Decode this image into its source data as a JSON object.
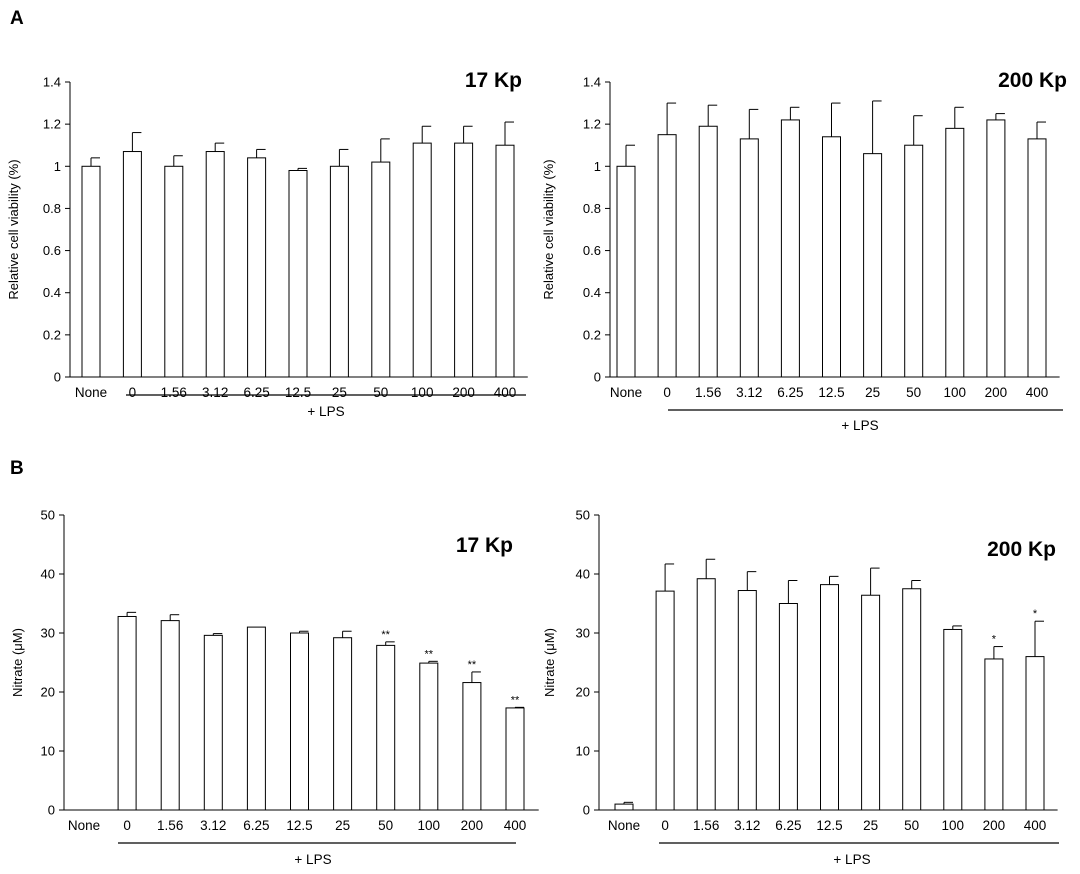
{
  "panels": {
    "a": "A",
    "b": "B"
  },
  "chart_data": [
    {
      "type": "bar",
      "panel": "A",
      "title": "17 Kp",
      "ylabel": "Relative cell viability (%)",
      "xlabel": "",
      "ylim": [
        0,
        1.4
      ],
      "yticks": [
        "0",
        "0.2",
        "0.4",
        "0.6",
        "0.8",
        "1",
        "1.2",
        "1.4"
      ],
      "yticks_values": [
        0,
        0.2,
        0.4,
        0.6,
        0.8,
        1.0,
        1.2,
        1.4
      ],
      "categories": [
        "None",
        "0",
        "1.56",
        "3.12",
        "6.25",
        "12.5",
        "25",
        "50",
        "100",
        "200",
        "400"
      ],
      "values": [
        1.0,
        1.07,
        1.0,
        1.07,
        1.04,
        0.98,
        1.0,
        1.02,
        1.11,
        1.11,
        1.1
      ],
      "errors": [
        0.04,
        0.09,
        0.05,
        0.04,
        0.04,
        0.01,
        0.08,
        0.11,
        0.08,
        0.08,
        0.11
      ],
      "significance": [
        "",
        "",
        "",
        "",
        "",
        "",
        "",
        "",
        "",
        "",
        ""
      ],
      "group_label": "+ LPS",
      "grid": false,
      "bar_fill": "#ffffff",
      "bar_stroke": "#000000"
    },
    {
      "type": "bar",
      "panel": "A",
      "title": "200 Kp",
      "ylabel": "Relative cell viability (%)",
      "xlabel": "",
      "ylim": [
        0,
        1.4
      ],
      "yticks": [
        "0",
        "0.2",
        "0.4",
        "0.6",
        "0.8",
        "1",
        "1.2",
        "1.4"
      ],
      "yticks_values": [
        0,
        0.2,
        0.4,
        0.6,
        0.8,
        1.0,
        1.2,
        1.4
      ],
      "categories": [
        "None",
        "0",
        "1.56",
        "3.12",
        "6.25",
        "12.5",
        "25",
        "50",
        "100",
        "200",
        "400"
      ],
      "values": [
        1.0,
        1.15,
        1.19,
        1.13,
        1.22,
        1.14,
        1.06,
        1.1,
        1.18,
        1.22,
        1.13
      ],
      "errors": [
        0.1,
        0.15,
        0.1,
        0.14,
        0.06,
        0.16,
        0.25,
        0.14,
        0.1,
        0.03,
        0.08
      ],
      "significance": [
        "",
        "",
        "",
        "",
        "",
        "",
        "",
        "",
        "",
        "",
        ""
      ],
      "group_label": "+ LPS",
      "grid": false,
      "bar_fill": "#ffffff",
      "bar_stroke": "#000000"
    },
    {
      "type": "bar",
      "panel": "B",
      "title": "17 Kp",
      "ylabel": "Nitrate (μM)",
      "xlabel": "",
      "ylim": [
        0,
        50
      ],
      "yticks": [
        "0",
        "10",
        "20",
        "30",
        "40",
        "50"
      ],
      "yticks_values": [
        0,
        10,
        20,
        30,
        40,
        50
      ],
      "categories": [
        "None",
        "0",
        "1.56",
        "3.12",
        "6.25",
        "12.5",
        "25",
        "50",
        "100",
        "200",
        "400"
      ],
      "values": [
        0,
        32.8,
        32.1,
        29.6,
        31.0,
        30.0,
        29.2,
        27.9,
        24.9,
        21.6,
        17.3
      ],
      "errors": [
        0,
        0.7,
        1.0,
        0.3,
        0,
        0.3,
        1.1,
        0.6,
        0.3,
        1.8,
        0.1
      ],
      "significance": [
        "",
        "",
        "",
        "",
        "",
        "",
        "",
        "**",
        "**",
        "**",
        "**"
      ],
      "group_label": "+ LPS",
      "grid": false,
      "bar_fill": "#ffffff",
      "bar_stroke": "#000000"
    },
    {
      "type": "bar",
      "panel": "B",
      "title": "200 Kp",
      "ylabel": "Nitrate (μM)",
      "xlabel": "",
      "ylim": [
        0,
        50
      ],
      "yticks": [
        "0",
        "10",
        "20",
        "30",
        "40",
        "50"
      ],
      "yticks_values": [
        0,
        10,
        20,
        30,
        40,
        50
      ],
      "categories": [
        "None",
        "0",
        "1.56",
        "3.12",
        "6.25",
        "12.5",
        "25",
        "50",
        "100",
        "200",
        "400"
      ],
      "values": [
        1.0,
        37.1,
        39.2,
        37.2,
        35.0,
        38.2,
        36.4,
        37.5,
        30.6,
        25.6,
        26.0
      ],
      "errors": [
        0.3,
        4.6,
        3.3,
        3.2,
        3.9,
        1.4,
        4.6,
        1.4,
        0.6,
        2.1,
        6.0
      ],
      "significance": [
        "",
        "",
        "",
        "",
        "",
        "",
        "",
        "",
        "",
        "*",
        "*"
      ],
      "group_label": "+ LPS",
      "grid": false,
      "bar_fill": "#ffffff",
      "bar_stroke": "#000000"
    }
  ]
}
